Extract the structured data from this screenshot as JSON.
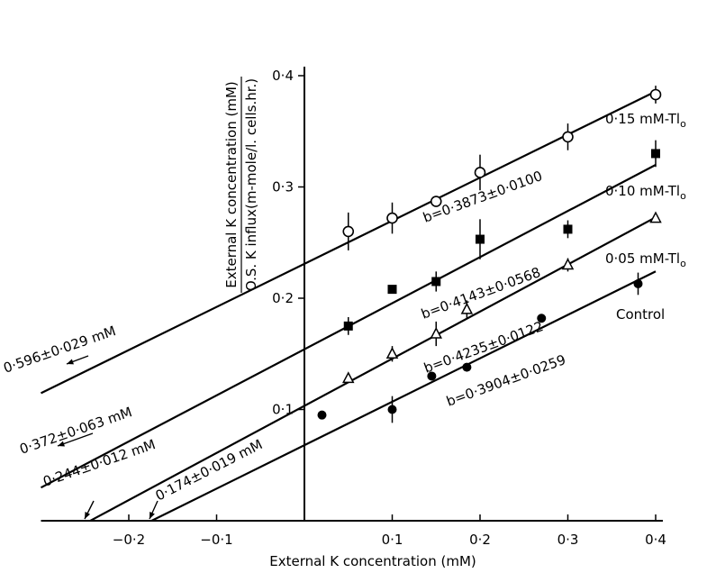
{
  "chart_data": {
    "type": "scatter",
    "xlabel": "External K concentration (mM)",
    "ylabel_numerator": "External K concentration (mM)",
    "ylabel_denominator": "O.S. K influx(m-mole/l. cells.hr.)",
    "xlim": [
      -0.3,
      0.4
    ],
    "ylim": [
      0,
      0.4
    ],
    "x_ticks": [
      {
        "value": -0.2,
        "label": "−0·2"
      },
      {
        "value": -0.1,
        "label": "−0·1"
      },
      {
        "value": 0.1,
        "label": "0·1"
      },
      {
        "value": 0.2,
        "label": "0·2"
      },
      {
        "value": 0.3,
        "label": "0·3"
      },
      {
        "value": 0.4,
        "label": "0·4"
      }
    ],
    "y_ticks": [
      {
        "value": 0.1,
        "label": "0·1"
      },
      {
        "value": 0.2,
        "label": "0·2"
      },
      {
        "value": 0.3,
        "label": "0·3"
      },
      {
        "value": 0.4,
        "label": "0·4"
      }
    ],
    "series": [
      {
        "name": "0·15 mM-Tl",
        "name_sub": "o",
        "marker": "open-circle",
        "slope_label": "b=0·3873±0·0100",
        "intercept_label": "0·596±0·029 mM",
        "line": {
          "intercept": 0.2309,
          "slope": 0.3873,
          "x_start": -0.3
        },
        "x": [
          0.05,
          0.1,
          0.15,
          0.2,
          0.3,
          0.4
        ],
        "y": [
          0.26,
          0.272,
          0.287,
          0.313,
          0.345,
          0.383
        ],
        "err": [
          0.017,
          0.014,
          0.004,
          0.016,
          0.012,
          0.008
        ]
      },
      {
        "name": "0·10 mM-Tl",
        "name_sub": "o",
        "marker": "filled-square",
        "slope_label": "b=0·4143±0·0568",
        "intercept_label": "0·372±0·063 mM",
        "line": {
          "intercept": 0.1541,
          "slope": 0.4143,
          "x_start": -0.3
        },
        "x": [
          0.05,
          0.1,
          0.15,
          0.2,
          0.3,
          0.4
        ],
        "y": [
          0.175,
          0.208,
          0.215,
          0.253,
          0.262,
          0.33
        ],
        "err": [
          0.008,
          0.0,
          0.009,
          0.018,
          0.008,
          0.012
        ]
      },
      {
        "name": "0·05 mM-Tl",
        "name_sub": "o",
        "marker": "open-triangle",
        "slope_label": "b=0·4235±0·0122",
        "intercept_label": "0·244±0·012 mM",
        "line": {
          "intercept": 0.1033,
          "slope": 0.4235,
          "x_start": -0.244
        },
        "x": [
          0.05,
          0.1,
          0.15,
          0.185,
          0.3,
          0.4
        ],
        "y": [
          0.128,
          0.15,
          0.168,
          0.19,
          0.23,
          0.272
        ],
        "err": [
          0.0,
          0.007,
          0.011,
          0.008,
          0.006,
          0.0
        ]
      },
      {
        "name": "Control",
        "marker": "filled-circle",
        "slope_label": "b=0·3904±0·0259",
        "intercept_label": "0·174±0·019 mM",
        "line": {
          "intercept": 0.0679,
          "slope": 0.3904,
          "x_start": -0.174
        },
        "x": [
          0.02,
          0.1,
          0.145,
          0.185,
          0.27,
          0.38
        ],
        "y": [
          0.095,
          0.1,
          0.13,
          0.138,
          0.182,
          0.213
        ],
        "err": [
          0.0,
          0.012,
          0.0,
          0.0,
          0.0,
          0.01
        ]
      }
    ]
  }
}
